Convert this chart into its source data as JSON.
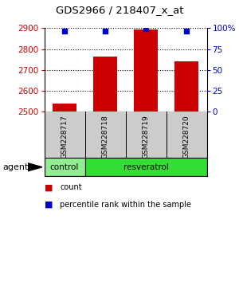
{
  "title": "GDS2966 / 218407_x_at",
  "samples": [
    "GSM228717",
    "GSM228718",
    "GSM228719",
    "GSM228720"
  ],
  "bar_values": [
    2537,
    2762,
    2893,
    2742
  ],
  "percentile_values": [
    97,
    97,
    99,
    97
  ],
  "bar_color": "#cc0000",
  "dot_color": "#0000cc",
  "ylim_left": [
    2500,
    2900
  ],
  "yticks_left": [
    2500,
    2600,
    2700,
    2800,
    2900
  ],
  "ylim_right": [
    0,
    100
  ],
  "yticks_right": [
    0,
    25,
    50,
    75,
    100
  ],
  "ylabel_left_color": "#cc0000",
  "ylabel_right_color": "#0000cc",
  "agent_label": "agent",
  "legend_count_label": "count",
  "legend_pct_label": "percentile rank within the sample",
  "bar_width": 0.6,
  "background_color": "#ffffff",
  "plot_bg": "#ffffff",
  "sample_box_color": "#cccccc",
  "control_color": "#90ee90",
  "resveratrol_color": "#33dd33"
}
